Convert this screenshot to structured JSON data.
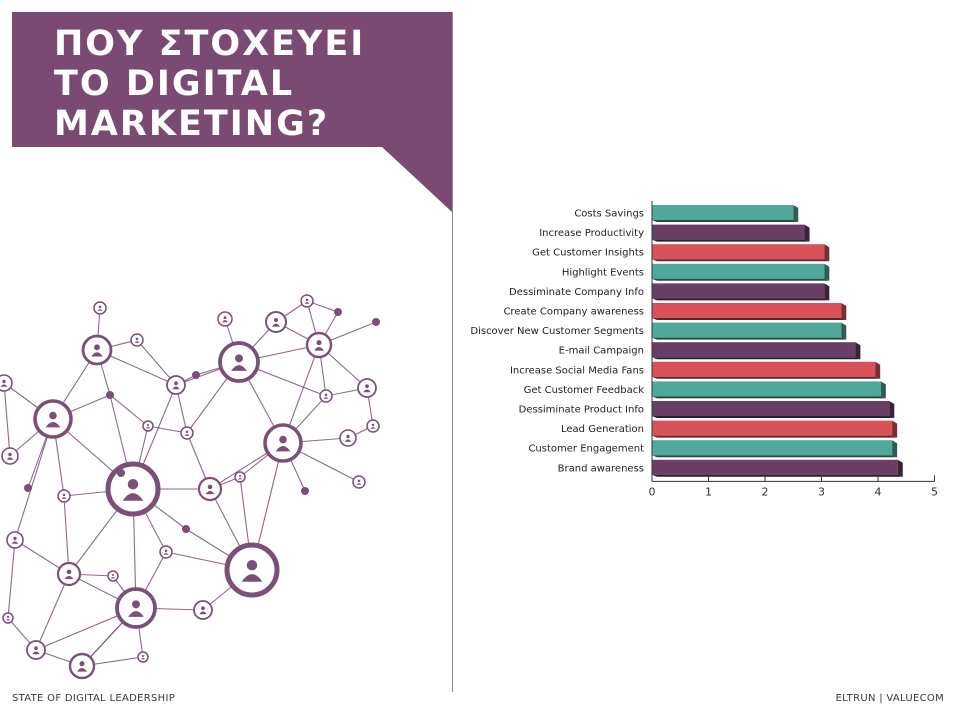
{
  "title": {
    "lines": [
      "ΠΟΥ ΣΤΟΧΕΥΕΙ",
      "ΤΟ DIGITAL",
      "MARKETING?"
    ]
  },
  "footer": {
    "left": "STATE OF DIGITAL LEADERSHIP",
    "right": "ELTRUN | VALUECOM"
  },
  "colors": {
    "banner": "#7a4a72",
    "network": "#7b4f77",
    "teal": "#4fa89a",
    "purple": "#6a3f66",
    "red": "#d9525a"
  },
  "chart_data": {
    "type": "bar",
    "orientation": "horizontal",
    "categories": [
      "Costs Savings",
      "Increase Productivity",
      "Get Customer Insights",
      "Highlight Events",
      "Dessiminate Company Info",
      "Create Company awareness",
      "Discover New Customer Segments",
      "E-mail Campaign",
      "Increase Social Media Fans",
      "Get Customer Feedback",
      "Dessiminate Product Info",
      "Lead Generation",
      "Customer Engagement",
      "Brand awareness"
    ],
    "values": [
      2.5,
      2.7,
      3.05,
      3.05,
      3.05,
      3.35,
      3.35,
      3.6,
      3.95,
      4.05,
      4.2,
      4.25,
      4.25,
      4.35
    ],
    "bar_colors": [
      "teal",
      "purple",
      "red",
      "teal",
      "purple",
      "red",
      "teal",
      "purple",
      "red",
      "teal",
      "purple",
      "red",
      "teal",
      "purple"
    ],
    "xlim": [
      0,
      5
    ],
    "xticks": [
      "0",
      "1",
      "2",
      "3",
      "4",
      "5"
    ],
    "grid": false
  }
}
